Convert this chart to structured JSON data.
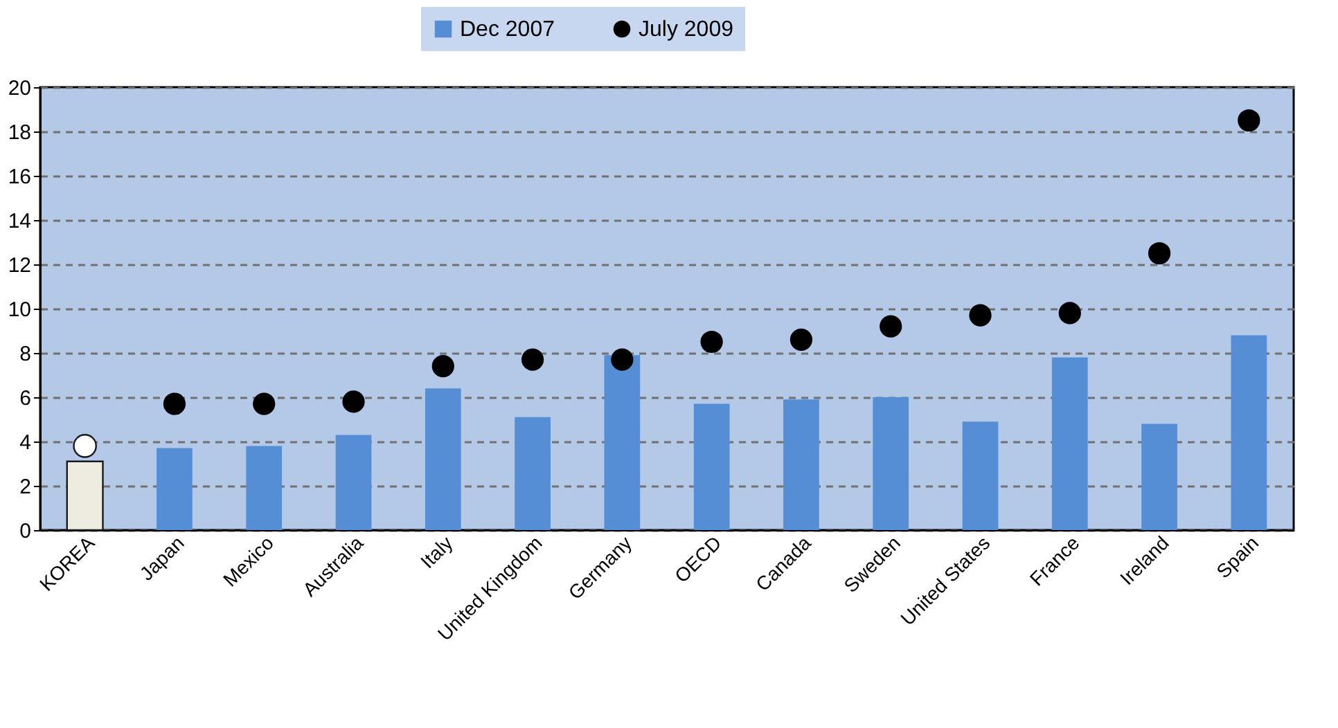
{
  "chart_data": {
    "type": "bar",
    "categories": [
      "KOREA",
      "Japan",
      "Mexico",
      "Australia",
      "Italy",
      "United Kingdom",
      "Germany",
      "OECD",
      "Canada",
      "Sweden",
      "United States",
      "France",
      "Ireland",
      "Spain"
    ],
    "series": [
      {
        "name": "Dec 2007",
        "color": "#558ed5",
        "colors": [
          "#eeece1",
          "#558ed5",
          "#558ed5",
          "#558ed5",
          "#558ed5",
          "#558ed5",
          "#558ed5",
          "#558ed5",
          "#558ed5",
          "#558ed5",
          "#558ed5",
          "#558ed5",
          "#558ed5",
          "#558ed5"
        ],
        "values": [
          3.1,
          3.7,
          3.8,
          4.3,
          6.4,
          5.1,
          7.9,
          5.7,
          5.9,
          6.0,
          4.9,
          7.8,
          4.8,
          8.8
        ]
      },
      {
        "name": "July 2009",
        "type": "scatter",
        "color": "#000000",
        "colors": [
          "#ffffff",
          "#000000",
          "#000000",
          "#000000",
          "#000000",
          "#000000",
          "#000000",
          "#000000",
          "#000000",
          "#000000",
          "#000000",
          "#000000",
          "#000000",
          "#000000"
        ],
        "values": [
          3.8,
          5.7,
          5.7,
          5.8,
          7.4,
          7.7,
          7.7,
          8.5,
          8.6,
          9.2,
          9.7,
          9.8,
          12.5,
          18.5
        ]
      }
    ],
    "ylim": [
      0,
      20
    ],
    "yticks": [
      0,
      2,
      4,
      6,
      8,
      10,
      12,
      14,
      16,
      18,
      20
    ],
    "grid": "y",
    "legend": "top",
    "marker": "circle"
  }
}
